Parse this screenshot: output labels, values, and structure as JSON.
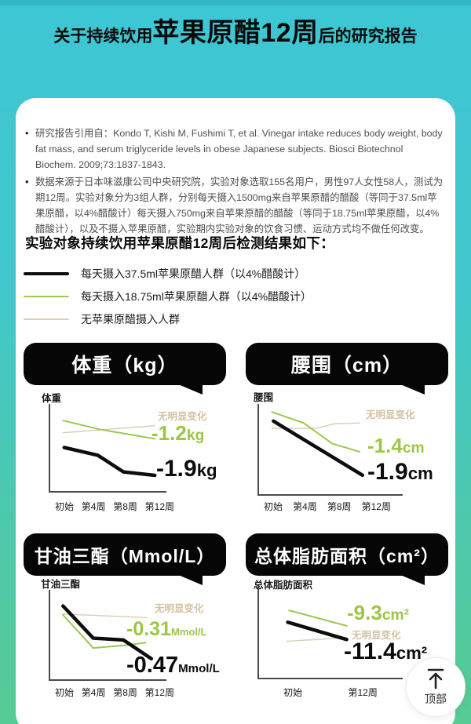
{
  "colors": {
    "background_teal_top": "#3dc6d4",
    "background_green_bottom": "#57cb94",
    "line_black": "#0d0d0d",
    "line_green": "#9cc751",
    "line_beige": "#d9cfb6",
    "label_green": "#9cc646",
    "label_beige": "#d3c3a3"
  },
  "header": {
    "title_prefix": "关于持续饮用",
    "title_highlight": "苹果原醋12周",
    "title_suffix": "后的研究报告"
  },
  "card": {
    "bullets": [
      "研究报告引用自：Kondo T, Kishi M, Fushimi T, et al. Vinegar intake reduces body weight, body fat mass, and serum triglyceride levels in obese Japanese subjects. Biosci Biotechnol Biochem. 2009;73:1837-1843.",
      "数据来源于日本味滋康公司中央研究院，实验对象选取155名用户，男性97人女性58人，测试为期12周。实验对象分为3组人群，分别每天摄入1500mg来自苹果原醋的醋酸（等同于37.5ml苹果原醋，以4%醋酸计）每天摄入750mg来自苹果原醋的醋酸（等同于18.75ml苹果原醋，以4%醋酸计），以及不摄入苹果原醋，实验期内实验对象的饮食习惯、运动方式均不做任何改变。"
    ],
    "results_heading": "实验对象持续饮用苹果原醋12周后检测结果如下：",
    "legend": [
      {
        "label": "每天摄入37.5ml苹果原醋人群（以4%醋酸计）",
        "color": "#0d0d0d"
      },
      {
        "label": "每天摄入18.75ml苹果原醋人群（以4%醋酸计）",
        "color": "#9cc751"
      },
      {
        "label": "无苹果原醋摄入人群",
        "color": "#d9cfb6"
      }
    ]
  },
  "chart_data": [
    {
      "type": "line",
      "title": "体重（kg）",
      "ylabel": "体重",
      "x_labels": [
        "初始",
        "第4周",
        "第8周",
        "第12周"
      ],
      "grid": false,
      "series": [
        {
          "name": "每天摄入37.5ml苹果原醋人群（以4%醋酸计）",
          "color_key": "black",
          "points": [
            [
              12,
              50
            ],
            [
              41,
              59
            ],
            [
              63,
              78
            ],
            [
              90,
              82
            ]
          ],
          "annotation_value": "-1.9",
          "annotation_unit": "kg"
        },
        {
          "name": "每天摄入18.75ml苹果原醋人群（以4%醋酸计）",
          "color_key": "green",
          "points": [
            [
              11,
              19
            ],
            [
              42,
              29
            ],
            [
              90,
              40
            ]
          ],
          "annotation_value": "-1.2",
          "annotation_unit": "kg"
        },
        {
          "name": "无苹果原醋摄入人群",
          "color_key": "beige",
          "points": [
            [
              11,
              33
            ],
            [
              90,
              25
            ]
          ],
          "annotation": "无明显变化"
        }
      ]
    },
    {
      "type": "line",
      "title": "腰围（cm）",
      "ylabel": "腰围",
      "x_labels": [
        "初始",
        "第4周",
        "第8周",
        "第12周"
      ],
      "grid": false,
      "series": [
        {
          "name": "每天摄入37.5ml苹果原醋人群（以4%醋酸计）",
          "color_key": "black",
          "points": [
            [
              10,
              19
            ],
            [
              72,
              79
            ]
          ],
          "annotation_value": "-1.9",
          "annotation_unit": "cm"
        },
        {
          "name": "每天摄入18.75ml苹果原醋人群（以4%醋酸计）",
          "color_key": "green",
          "points": [
            [
              9,
              9
            ],
            [
              31,
              21
            ],
            [
              51,
              44
            ],
            [
              70,
              53
            ]
          ],
          "annotation_value": "-1.4",
          "annotation_unit": "cm"
        },
        {
          "name": "无苹果原醋摄入人群",
          "color_key": "beige",
          "points": [
            [
              9,
              27
            ],
            [
              40,
              27
            ],
            [
              52,
              22
            ],
            [
              70,
              21
            ]
          ],
          "annotation": "无明显变化"
        }
      ]
    },
    {
      "type": "line",
      "title": "甘油三酯（Mmol/L）",
      "ylabel": "甘油三酯",
      "x_labels": [
        "初始",
        "第4周",
        "第8周",
        "第12周"
      ],
      "grid": false,
      "series": [
        {
          "name": "每天摄入37.5ml苹果原醋人群（以4%醋酸计）",
          "color_key": "black",
          "points": [
            [
              11,
              18
            ],
            [
              37,
              54
            ],
            [
              63,
              56
            ],
            [
              87,
              77
            ]
          ],
          "annotation_value": "-0.47",
          "annotation_unit": "Mmol/L"
        },
        {
          "name": "每天摄入18.75ml苹果原醋人群（以4%醋酸计）",
          "color_key": "green",
          "points": [
            [
              11,
              28
            ],
            [
              37,
              65
            ],
            [
              65,
              62
            ],
            [
              82,
              59
            ]
          ],
          "annotation_value": "-0.31",
          "annotation_unit": "Mmol/L"
        },
        {
          "name": "无苹果原醋摄入人群",
          "color_key": "beige",
          "points": [
            [
              11,
              27
            ],
            [
              83,
              31
            ]
          ],
          "annotation": "无明显变化"
        }
      ]
    },
    {
      "type": "line",
      "title": "总体脂肪面积（cm²）",
      "ylabel": "总体脂肪面积",
      "x_labels": [
        "初始",
        "第12周"
      ],
      "grid": false,
      "series": [
        {
          "name": "每天摄入37.5ml苹果原醋人群（以4%醋酸计）",
          "color_key": "black",
          "points": [
            [
              20,
              39
            ],
            [
              61,
              58
            ]
          ],
          "annotation_value": "-11.4",
          "annotation_unit": "cm²"
        },
        {
          "name": "每天摄入18.75ml苹果原醋人群（以4%醋酸计）",
          "color_key": "green",
          "points": [
            [
              21,
              26
            ],
            [
              61,
              43
            ]
          ],
          "annotation_value": "-9.3",
          "annotation_unit": "cm²"
        },
        {
          "name": "无苹果原醋摄入人群",
          "color_key": "beige",
          "points": [
            [
              19,
              60
            ],
            [
              61,
              56
            ]
          ],
          "annotation": "无明显变化"
        }
      ]
    }
  ],
  "back_to_top": {
    "label": "顶部"
  }
}
